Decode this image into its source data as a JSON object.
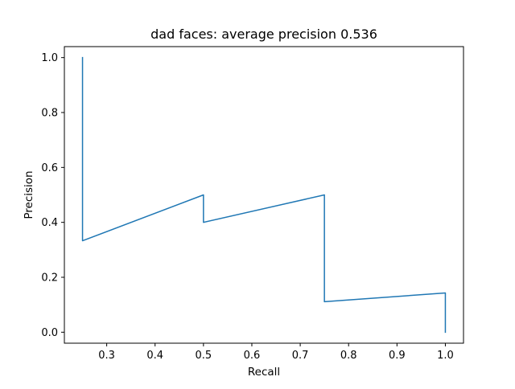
{
  "chart_data": {
    "type": "line",
    "title": "dad faces: average precision 0.536",
    "xlabel": "Recall",
    "ylabel": "Precision",
    "xlim": [
      0.2125,
      1.0375
    ],
    "ylim": [
      -0.04,
      1.04
    ],
    "xticks": [
      0.3,
      0.4,
      0.5,
      0.6,
      0.7,
      0.8,
      0.9,
      1.0
    ],
    "xtick_labels": [
      "0.3",
      "0.4",
      "0.5",
      "0.6",
      "0.7",
      "0.8",
      "0.9",
      "1.0"
    ],
    "yticks": [
      0.0,
      0.2,
      0.4,
      0.6,
      0.8,
      1.0
    ],
    "ytick_labels": [
      "0.0",
      "0.2",
      "0.4",
      "0.6",
      "0.8",
      "1.0"
    ],
    "grid": false,
    "series": [
      {
        "color": "#1f77b4",
        "x": [
          0.25,
          0.25,
          0.5,
          0.5,
          0.75,
          0.75,
          1.0,
          1.0
        ],
        "y": [
          1.0,
          0.333,
          0.5,
          0.4,
          0.5,
          0.111,
          0.143,
          0.0
        ]
      }
    ]
  }
}
